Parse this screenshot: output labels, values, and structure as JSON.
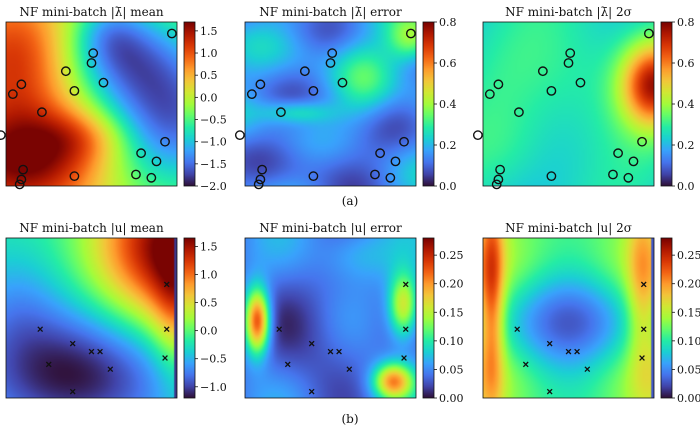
{
  "figure": {
    "caption_a": "(a)",
    "caption_b": "(b)"
  },
  "colors": {
    "colormap": [
      "#30123b",
      "#4145ab",
      "#4675ed",
      "#39a2fc",
      "#1bcfd4",
      "#24eca6",
      "#61fc6c",
      "#a4fc3b",
      "#d1e834",
      "#f3c63a",
      "#fe9b2d",
      "#f36315",
      "#d93806",
      "#b11901",
      "#7a0402"
    ],
    "marker": "#111111",
    "frame": "#111111"
  },
  "chart_data": [
    {
      "type": "heatmap",
      "row": "a",
      "col": 0,
      "title": "NF mini-batch |λ̄| mean",
      "field": "lambda_mean",
      "colorbar": {
        "range": [
          -2.0,
          1.7
        ],
        "ticks": [
          "1.5",
          "1.0",
          "0.5",
          "0.0",
          "−0.5",
          "−1.0",
          "−1.5",
          "−2.0"
        ],
        "values": [
          1.5,
          1.0,
          0.5,
          0.0,
          -0.5,
          -1.0,
          -1.5,
          -2.0
        ]
      },
      "markers": "circle"
    },
    {
      "type": "heatmap",
      "row": "a",
      "col": 1,
      "title": "NF mini-batch |λ̄| error",
      "field": "lambda_error",
      "colorbar": {
        "range": [
          0.0,
          0.8
        ],
        "ticks": [
          "0.8",
          "0.6",
          "0.4",
          "0.2",
          "0.0"
        ],
        "values": [
          0.8,
          0.6,
          0.4,
          0.2,
          0.0
        ]
      },
      "markers": "circle"
    },
    {
      "type": "heatmap",
      "row": "a",
      "col": 2,
      "title": "NF mini-batch |λ̄| 2σ",
      "field": "lambda_2sigma",
      "colorbar": {
        "range": [
          0.0,
          0.8
        ],
        "ticks": [
          "0.8",
          "0.6",
          "0.4",
          "0.2",
          "0.0"
        ],
        "values": [
          0.8,
          0.6,
          0.4,
          0.2,
          0.0
        ]
      },
      "markers": "circle"
    },
    {
      "type": "heatmap",
      "row": "b",
      "col": 0,
      "title": "NF mini-batch |u| mean",
      "field": "u_mean",
      "colorbar": {
        "range": [
          -1.2,
          1.65
        ],
        "ticks": [
          "1.5",
          "1.0",
          "0.5",
          "0.0",
          "−0.5",
          "−1.0"
        ],
        "values": [
          1.5,
          1.0,
          0.5,
          0.0,
          -0.5,
          -1.0
        ]
      },
      "markers": "cross"
    },
    {
      "type": "heatmap",
      "row": "b",
      "col": 1,
      "title": "NF mini-batch |u| error",
      "field": "u_error",
      "colorbar": {
        "range": [
          0.0,
          0.28
        ],
        "ticks": [
          "0.25",
          "0.20",
          "0.15",
          "0.10",
          "0.05",
          "0.00"
        ],
        "values": [
          0.25,
          0.2,
          0.15,
          0.1,
          0.05,
          0.0
        ]
      },
      "markers": "cross"
    },
    {
      "type": "heatmap",
      "row": "b",
      "col": 2,
      "title": "NF mini-batch |u| 2σ",
      "field": "u_2sigma",
      "colorbar": {
        "range": [
          0.0,
          0.28
        ],
        "ticks": [
          "0.25",
          "0.20",
          "0.15",
          "0.10",
          "0.05",
          "0.00"
        ],
        "values": [
          0.25,
          0.2,
          0.15,
          0.1,
          0.05,
          0.0
        ]
      },
      "markers": "cross"
    }
  ],
  "sensors_circle": [
    [
      0.97,
      0.07
    ],
    [
      0.51,
      0.19
    ],
    [
      0.5,
      0.25
    ],
    [
      0.35,
      0.3
    ],
    [
      0.57,
      0.37
    ],
    [
      0.09,
      0.38
    ],
    [
      0.4,
      0.42
    ],
    [
      0.04,
      0.44
    ],
    [
      0.21,
      0.55
    ],
    [
      -0.03,
      0.69
    ],
    [
      0.93,
      0.73
    ],
    [
      0.79,
      0.8
    ],
    [
      0.88,
      0.85
    ],
    [
      0.1,
      0.9
    ],
    [
      0.76,
      0.93
    ],
    [
      0.4,
      0.94
    ],
    [
      0.85,
      0.95
    ],
    [
      0.09,
      0.96
    ],
    [
      0.08,
      0.99
    ]
  ],
  "sensors_cross": [
    [
      0.94,
      0.29
    ],
    [
      0.2,
      0.57
    ],
    [
      0.94,
      0.57
    ],
    [
      0.39,
      0.66
    ],
    [
      0.5,
      0.71
    ],
    [
      0.55,
      0.71
    ],
    [
      0.93,
      0.75
    ],
    [
      0.25,
      0.79
    ],
    [
      0.61,
      0.82
    ],
    [
      0.39,
      0.96
    ]
  ]
}
